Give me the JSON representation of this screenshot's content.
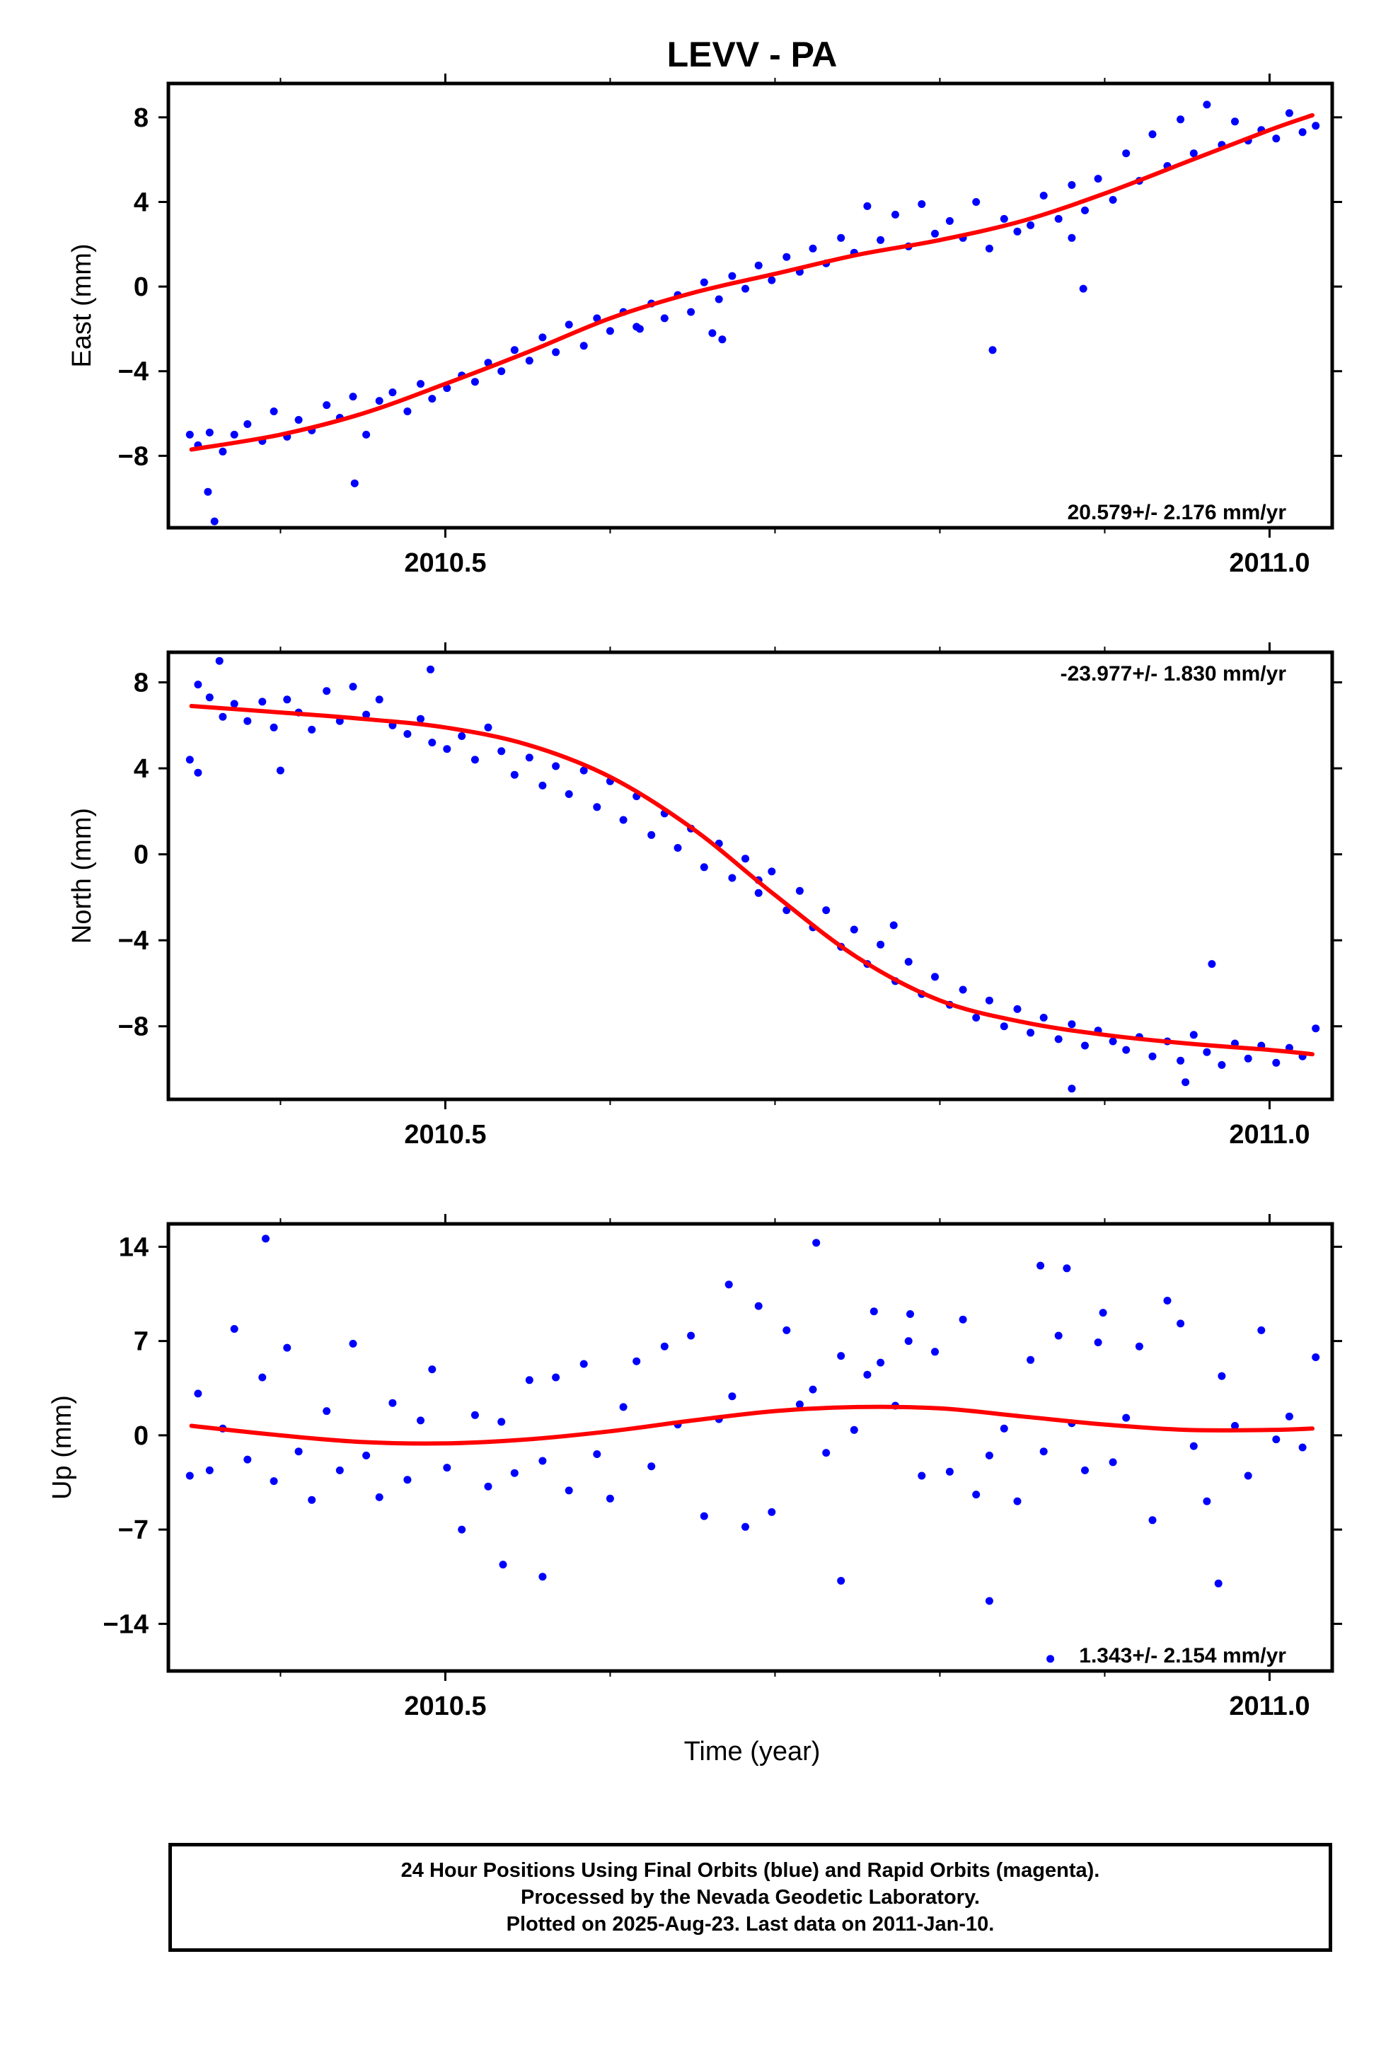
{
  "title": "LEVV - PA",
  "colors": {
    "final_orbits": "#0000ff",
    "model_fit": "#ff0000",
    "axes": "#000000"
  },
  "caption": {
    "line1": "24 Hour Positions Using Final Orbits (blue) and Rapid Orbits (magenta).",
    "line2": "Processed by the Nevada Geodetic Laboratory.",
    "line3": "Plotted on 2025-Aug-23. Last data on 2011-Jan-10."
  },
  "chart_data": [
    {
      "type": "scatter",
      "ylabel": "East (mm)",
      "xlabel": "",
      "xlim": [
        2010.332,
        2011.038
      ],
      "ylim": [
        -11.4,
        9.6
      ],
      "x_ticks": [
        2010.5,
        2011.0
      ],
      "x_tick_labels": [
        "2010.5",
        "2011.0"
      ],
      "x_minor_ticks": [
        2010.4,
        2010.6,
        2010.7,
        2010.8,
        2010.9
      ],
      "y_ticks": [
        -8,
        -4,
        0,
        4,
        8
      ],
      "y_tick_labels": [
        "−8",
        "−4",
        "0",
        "4",
        "8"
      ],
      "rate_label": "20.579+/- 2.176 mm/yr",
      "rate_label_position": "bottom-right",
      "series": [
        {
          "kind": "points",
          "x": [
            2010.345,
            2010.35,
            2010.357,
            2010.365,
            2010.372,
            2010.38,
            2010.389,
            2010.396,
            2010.404,
            2010.411,
            2010.419,
            2010.428,
            2010.436,
            2010.444,
            2010.452,
            2010.46,
            2010.468,
            2010.477,
            2010.485,
            2010.492,
            2010.501,
            2010.51,
            2010.518,
            2010.526,
            2010.534,
            2010.542,
            2010.551,
            2010.559,
            2010.567,
            2010.575,
            2010.584,
            2010.592,
            2010.6,
            2010.608,
            2010.616,
            2010.625,
            2010.633,
            2010.641,
            2010.649,
            2010.657,
            2010.666,
            2010.674,
            2010.682,
            2010.69,
            2010.698,
            2010.707,
            2010.715,
            2010.723,
            2010.731,
            2010.74,
            2010.748,
            2010.756,
            2010.764,
            2010.773,
            2010.781,
            2010.789,
            2010.797,
            2010.806,
            2010.814,
            2010.822,
            2010.83,
            2010.839,
            2010.847,
            2010.855,
            2010.863,
            2010.872,
            2010.88,
            2010.888,
            2010.896,
            2010.905,
            2010.913,
            2010.921,
            2010.929,
            2010.938,
            2010.946,
            2010.954,
            2010.962,
            2010.971,
            2010.979,
            2010.987,
            2010.995,
            2011.004,
            2011.012,
            2011.02,
            2011.028,
            2010.356,
            2010.36,
            2010.445,
            2010.618,
            2010.662,
            2010.668,
            2010.832,
            2010.887,
            2010.88
          ],
          "y": [
            -7.0,
            -7.5,
            -6.9,
            -7.8,
            -7.0,
            -6.5,
            -7.3,
            -5.9,
            -7.1,
            -6.3,
            -6.8,
            -5.6,
            -6.2,
            -5.2,
            -7.0,
            -5.4,
            -5.0,
            -5.9,
            -4.6,
            -5.3,
            -4.8,
            -4.2,
            -4.5,
            -3.6,
            -4.0,
            -3.0,
            -3.5,
            -2.4,
            -3.1,
            -1.8,
            -2.8,
            -1.5,
            -2.1,
            -1.2,
            -1.9,
            -0.8,
            -1.5,
            -0.4,
            -1.2,
            0.2,
            -0.6,
            0.5,
            -0.1,
            1.0,
            0.3,
            1.4,
            0.7,
            1.8,
            1.1,
            2.3,
            1.6,
            3.8,
            2.2,
            3.4,
            1.9,
            3.9,
            2.5,
            3.1,
            2.3,
            4.0,
            1.8,
            3.2,
            2.6,
            2.9,
            4.3,
            3.2,
            4.8,
            3.6,
            5.1,
            4.1,
            6.3,
            5.0,
            7.2,
            5.7,
            7.9,
            6.3,
            8.6,
            6.7,
            7.8,
            6.9,
            7.4,
            7.0,
            8.2,
            7.3,
            7.6,
            -9.7,
            -11.1,
            -9.3,
            -2.0,
            -2.2,
            -2.5,
            -3.0,
            -0.1,
            2.3
          ],
          "color": "#0000ff"
        },
        {
          "kind": "model_fit",
          "x": [
            2010.346,
            2010.4,
            2010.45,
            2010.5,
            2010.55,
            2010.6,
            2010.65,
            2010.7,
            2010.75,
            2010.8,
            2010.85,
            2010.9,
            2010.95,
            2011.0,
            2011.026
          ],
          "y": [
            -7.7,
            -7.0,
            -6.0,
            -4.6,
            -3.1,
            -1.5,
            -0.3,
            0.6,
            1.5,
            2.2,
            3.1,
            4.4,
            5.9,
            7.4,
            8.1
          ],
          "color": "#ff0000"
        }
      ]
    },
    {
      "type": "scatter",
      "ylabel": "North (mm)",
      "xlabel": "",
      "xlim": [
        2010.332,
        2011.038
      ],
      "ylim": [
        -11.4,
        9.4
      ],
      "x_ticks": [
        2010.5,
        2011.0
      ],
      "x_tick_labels": [
        "2010.5",
        "2011.0"
      ],
      "x_minor_ticks": [
        2010.4,
        2010.6,
        2010.7,
        2010.8,
        2010.9
      ],
      "y_ticks": [
        -8,
        -4,
        0,
        4,
        8
      ],
      "y_tick_labels": [
        "−8",
        "−4",
        "0",
        "4",
        "8"
      ],
      "rate_label": "-23.977+/- 1.830 mm/yr",
      "rate_label_position": "top-right",
      "series": [
        {
          "kind": "points",
          "x": [
            2010.345,
            2010.35,
            2010.357,
            2010.365,
            2010.372,
            2010.38,
            2010.389,
            2010.396,
            2010.404,
            2010.411,
            2010.419,
            2010.428,
            2010.436,
            2010.444,
            2010.452,
            2010.46,
            2010.468,
            2010.477,
            2010.485,
            2010.492,
            2010.501,
            2010.51,
            2010.518,
            2010.526,
            2010.534,
            2010.542,
            2010.551,
            2010.559,
            2010.567,
            2010.575,
            2010.584,
            2010.592,
            2010.6,
            2010.608,
            2010.616,
            2010.625,
            2010.633,
            2010.641,
            2010.649,
            2010.657,
            2010.666,
            2010.674,
            2010.682,
            2010.69,
            2010.698,
            2010.707,
            2010.715,
            2010.723,
            2010.731,
            2010.74,
            2010.748,
            2010.756,
            2010.764,
            2010.773,
            2010.781,
            2010.789,
            2010.797,
            2010.806,
            2010.814,
            2010.822,
            2010.83,
            2010.839,
            2010.847,
            2010.855,
            2010.863,
            2010.872,
            2010.88,
            2010.888,
            2010.896,
            2010.905,
            2010.913,
            2010.921,
            2010.929,
            2010.938,
            2010.946,
            2010.954,
            2010.962,
            2010.971,
            2010.979,
            2010.987,
            2010.995,
            2011.004,
            2011.012,
            2011.02,
            2011.028,
            2010.35,
            2010.363,
            2010.4,
            2010.491,
            2010.69,
            2010.772,
            2010.88,
            2010.949,
            2010.965
          ],
          "y": [
            4.4,
            7.9,
            7.3,
            6.4,
            7.0,
            6.2,
            7.1,
            5.9,
            7.2,
            6.6,
            5.8,
            7.6,
            6.2,
            7.8,
            6.5,
            7.2,
            6.0,
            5.6,
            6.3,
            5.2,
            4.9,
            5.5,
            4.4,
            5.9,
            4.8,
            3.7,
            4.5,
            3.2,
            4.1,
            2.8,
            3.9,
            2.2,
            3.4,
            1.6,
            2.7,
            0.9,
            1.9,
            0.3,
            1.2,
            -0.6,
            0.5,
            -1.1,
            -0.2,
            -1.8,
            -0.8,
            -2.6,
            -1.7,
            -3.4,
            -2.6,
            -4.3,
            -3.5,
            -5.1,
            -4.2,
            -5.9,
            -5.0,
            -6.5,
            -5.7,
            -7.0,
            -6.3,
            -7.6,
            -6.8,
            -8.0,
            -7.2,
            -8.3,
            -7.6,
            -8.6,
            -7.9,
            -8.9,
            -8.2,
            -8.7,
            -9.1,
            -8.5,
            -9.4,
            -8.7,
            -9.6,
            -8.4,
            -9.2,
            -9.8,
            -8.8,
            -9.5,
            -8.9,
            -9.7,
            -9.0,
            -9.4,
            -8.1,
            3.8,
            9.0,
            3.9,
            8.6,
            -1.2,
            -3.3,
            -10.9,
            -10.6,
            -5.1
          ],
          "color": "#0000ff"
        },
        {
          "kind": "model_fit",
          "x": [
            2010.346,
            2010.4,
            2010.45,
            2010.5,
            2010.55,
            2010.6,
            2010.65,
            2010.7,
            2010.75,
            2010.8,
            2010.85,
            2010.9,
            2010.95,
            2011.0,
            2011.026
          ],
          "y": [
            6.9,
            6.6,
            6.3,
            5.9,
            5.1,
            3.6,
            1.2,
            -1.9,
            -4.8,
            -6.8,
            -7.8,
            -8.4,
            -8.8,
            -9.1,
            -9.3
          ],
          "color": "#ff0000"
        }
      ]
    },
    {
      "type": "scatter",
      "ylabel": "Up (mm)",
      "xlabel": "Time (year)",
      "xlim": [
        2010.332,
        2011.038
      ],
      "ylim": [
        -17.5,
        15.7
      ],
      "x_ticks": [
        2010.5,
        2011.0
      ],
      "x_tick_labels": [
        "2010.5",
        "2011.0"
      ],
      "x_minor_ticks": [
        2010.4,
        2010.6,
        2010.7,
        2010.8,
        2010.9
      ],
      "y_ticks": [
        -14,
        -7,
        0,
        7,
        14
      ],
      "y_tick_labels": [
        "−14",
        "−7",
        "0",
        "7",
        "14"
      ],
      "rate_label": "1.343+/- 2.154 mm/yr",
      "rate_label_position": "bottom-right",
      "series": [
        {
          "kind": "points",
          "x": [
            2010.345,
            2010.35,
            2010.357,
            2010.365,
            2010.372,
            2010.38,
            2010.389,
            2010.396,
            2010.404,
            2010.411,
            2010.419,
            2010.428,
            2010.436,
            2010.444,
            2010.452,
            2010.46,
            2010.468,
            2010.477,
            2010.485,
            2010.492,
            2010.501,
            2010.51,
            2010.518,
            2010.526,
            2010.534,
            2010.542,
            2010.551,
            2010.559,
            2010.567,
            2010.575,
            2010.584,
            2010.592,
            2010.6,
            2010.608,
            2010.616,
            2010.625,
            2010.633,
            2010.641,
            2010.649,
            2010.657,
            2010.666,
            2010.674,
            2010.682,
            2010.69,
            2010.698,
            2010.707,
            2010.715,
            2010.723,
            2010.731,
            2010.74,
            2010.748,
            2010.756,
            2010.764,
            2010.773,
            2010.781,
            2010.789,
            2010.797,
            2010.806,
            2010.814,
            2010.822,
            2010.83,
            2010.839,
            2010.847,
            2010.855,
            2010.863,
            2010.872,
            2010.88,
            2010.888,
            2010.896,
            2010.905,
            2010.913,
            2010.921,
            2010.929,
            2010.938,
            2010.946,
            2010.954,
            2010.962,
            2010.971,
            2010.979,
            2010.987,
            2010.995,
            2011.004,
            2011.012,
            2011.02,
            2011.028,
            2010.391,
            2010.535,
            2010.559,
            2010.672,
            2010.725,
            2010.74,
            2010.76,
            2010.782,
            2010.83,
            2010.861,
            2010.867,
            2010.877,
            2010.899,
            2010.969
          ],
          "y": [
            -3.0,
            3.1,
            -2.6,
            0.5,
            7.9,
            -1.8,
            4.3,
            -3.4,
            6.5,
            -1.2,
            -4.8,
            1.8,
            -2.6,
            6.8,
            -1.5,
            -4.6,
            2.4,
            -3.3,
            1.1,
            4.9,
            -2.4,
            -7.0,
            1.5,
            -3.8,
            1.0,
            -2.8,
            4.1,
            -1.9,
            4.3,
            -4.1,
            5.3,
            -1.4,
            -4.7,
            2.1,
            5.5,
            -2.3,
            6.6,
            0.8,
            7.4,
            -6.0,
            1.2,
            2.9,
            -6.8,
            9.6,
            -5.7,
            7.8,
            2.3,
            3.4,
            -1.3,
            5.9,
            0.4,
            4.5,
            5.4,
            2.2,
            7.0,
            -3.0,
            6.2,
            -2.7,
            8.6,
            -4.4,
            -1.5,
            0.5,
            -4.9,
            5.6,
            -1.2,
            7.4,
            0.9,
            -2.6,
            6.9,
            -2.0,
            1.3,
            6.6,
            -6.3,
            10.0,
            8.3,
            -0.8,
            -4.9,
            4.4,
            0.7,
            -3.0,
            7.8,
            -0.3,
            1.4,
            -0.9,
            5.8,
            14.6,
            -9.6,
            -10.5,
            11.2,
            14.3,
            -10.8,
            9.2,
            9.0,
            -12.3,
            12.6,
            -16.6,
            12.4,
            9.1,
            -11.0
          ],
          "color": "#0000ff"
        },
        {
          "kind": "model_fit",
          "x": [
            2010.346,
            2010.4,
            2010.45,
            2010.5,
            2010.55,
            2010.6,
            2010.65,
            2010.7,
            2010.75,
            2010.8,
            2010.85,
            2010.9,
            2010.95,
            2011.0,
            2011.026
          ],
          "y": [
            0.7,
            0.0,
            -0.5,
            -0.6,
            -0.3,
            0.3,
            1.1,
            1.8,
            2.1,
            2.0,
            1.4,
            0.8,
            0.4,
            0.4,
            0.5
          ],
          "color": "#ff0000"
        }
      ]
    }
  ]
}
